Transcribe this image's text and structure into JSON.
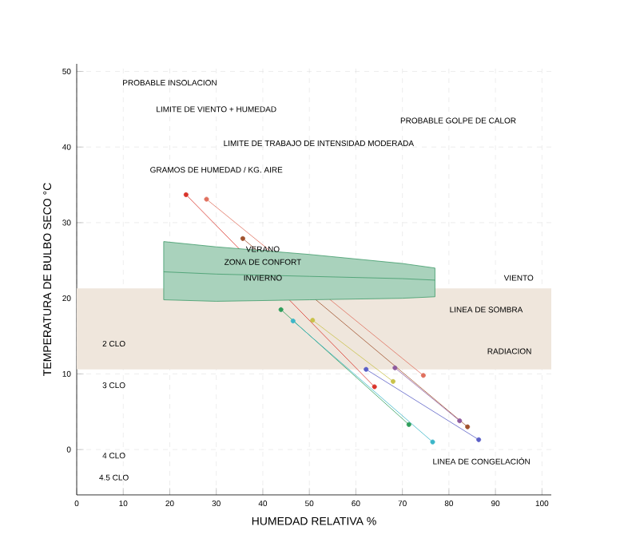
{
  "chart_data": {
    "type": "line",
    "xlabel": "HUMEDAD RELATIVA %",
    "ylabel": "TEMPERATURA DE BULBO SECO °C",
    "xlim": [
      0,
      102
    ],
    "ylim": [
      -6,
      51
    ],
    "xticks": [
      0,
      10,
      20,
      30,
      40,
      50,
      60,
      70,
      80,
      90,
      100
    ],
    "yticks": [
      0,
      10,
      20,
      30,
      40,
      50
    ],
    "grid": true,
    "marker": "circle",
    "series": [
      {
        "color": "#d9342b",
        "x": [
          23.5,
          64
        ],
        "values": [
          33.7,
          8.3
        ]
      },
      {
        "color": "#e0705e",
        "x": [
          27.9,
          74.5
        ],
        "values": [
          33.1,
          9.8
        ]
      },
      {
        "color": "#a0522d",
        "x": [
          35.7,
          84
        ],
        "values": [
          27.9,
          3.0
        ]
      },
      {
        "color": "#c9c24a",
        "x": [
          50.7,
          68
        ],
        "values": [
          17.1,
          9.0
        ]
      },
      {
        "color": "#8e5a9e",
        "x": [
          68.4,
          82.3
        ],
        "values": [
          10.8,
          3.8
        ]
      },
      {
        "color": "#5b5fc7",
        "x": [
          62.2,
          86.4
        ],
        "values": [
          10.6,
          1.3
        ]
      },
      {
        "color": "#2e9e5b",
        "x": [
          43.9,
          71.4
        ],
        "values": [
          18.5,
          3.3
        ]
      },
      {
        "color": "#3bb6c9",
        "x": [
          46.5,
          76.5
        ],
        "values": [
          17.0,
          1.0
        ]
      },
      {
        "type": "line",
        "marker": "none",
        "color": "#3f9a6a",
        "x": [
          18.7,
          30,
          50,
          70,
          77
        ],
        "values": [
          23.5,
          23.2,
          22.9,
          22.6,
          22.4
        ],
        "lower": [
          19.8,
          19.6,
          19.8,
          20.0,
          20.2
        ],
        "upper": [
          27.5,
          26.8,
          25.8,
          24.6,
          24.0
        ]
      }
    ],
    "bands": [
      {
        "axis": "y",
        "from": 10.6,
        "to": 21.3,
        "color": "#efe6dc"
      }
    ],
    "annotations": [
      "PROBABLE INSOLACION",
      "PROBABLE GOLPE DE CALOR",
      "LIMITE DE VIENTO + HUMEDAD",
      "LIMITE DE TRABAJO DE INTENSIDAD MODERADA",
      "GRAMOS DE HUMEDAD / KG. AIRE",
      "VERANO",
      "ZONA DE CONFORT",
      "INVIERNO",
      "LINEA DE SOMBRA",
      "RADIACION",
      "VIENTO",
      "LINEA DE CONGELACIÓN",
      "2 CLO",
      "3 CLO",
      "4 CLO",
      "4.5 CLO"
    ]
  }
}
